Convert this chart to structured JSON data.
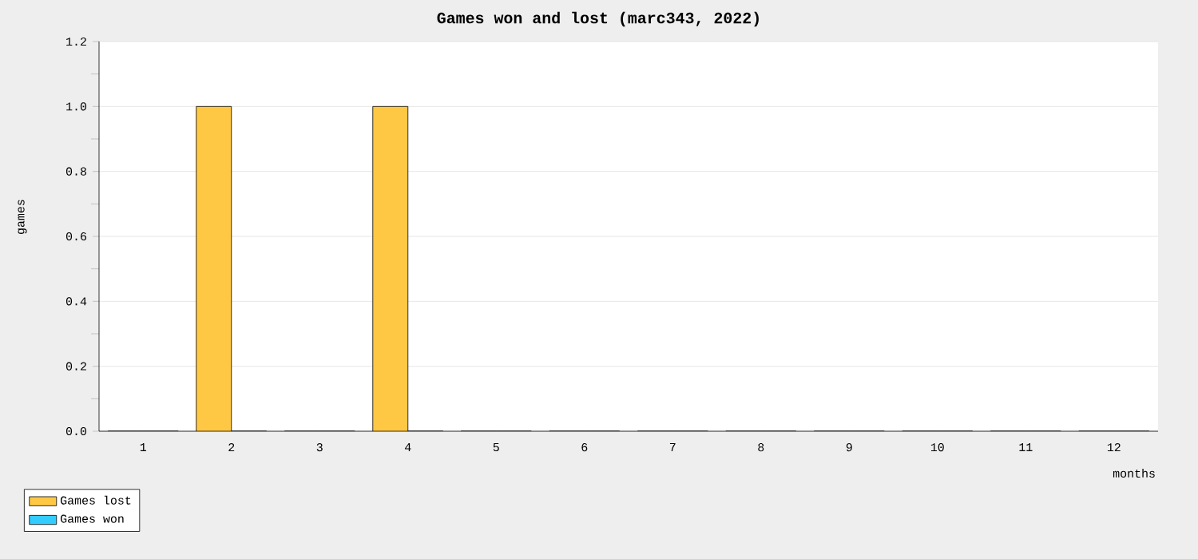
{
  "chart_data": {
    "type": "bar",
    "title": "Games won and lost (marc343, 2022)",
    "xlabel": "months",
    "ylabel": "games",
    "categories": [
      "1",
      "2",
      "3",
      "4",
      "5",
      "6",
      "7",
      "8",
      "9",
      "10",
      "11",
      "12"
    ],
    "series": [
      {
        "name": "Games lost",
        "color": "#ffc844",
        "values": [
          0,
          1,
          0,
          1,
          0,
          0,
          0,
          0,
          0,
          0,
          0,
          0
        ]
      },
      {
        "name": "Games won",
        "color": "#33ccff",
        "values": [
          0,
          0,
          0,
          0,
          0,
          0,
          0,
          0,
          0,
          0,
          0,
          0
        ]
      }
    ],
    "ylim": [
      0,
      1.2
    ],
    "yticks": [
      {
        "value": 0,
        "label": "0.0"
      },
      {
        "value": 0.2,
        "label": "0.2"
      },
      {
        "value": 0.4,
        "label": "0.4"
      },
      {
        "value": 0.6,
        "label": "0.6"
      },
      {
        "value": 0.8,
        "label": "0.8"
      },
      {
        "value": 1.0,
        "label": "1.0"
      },
      {
        "value": 1.2,
        "label": "1.2"
      }
    ],
    "grid": "y",
    "legend": "bottom left"
  }
}
